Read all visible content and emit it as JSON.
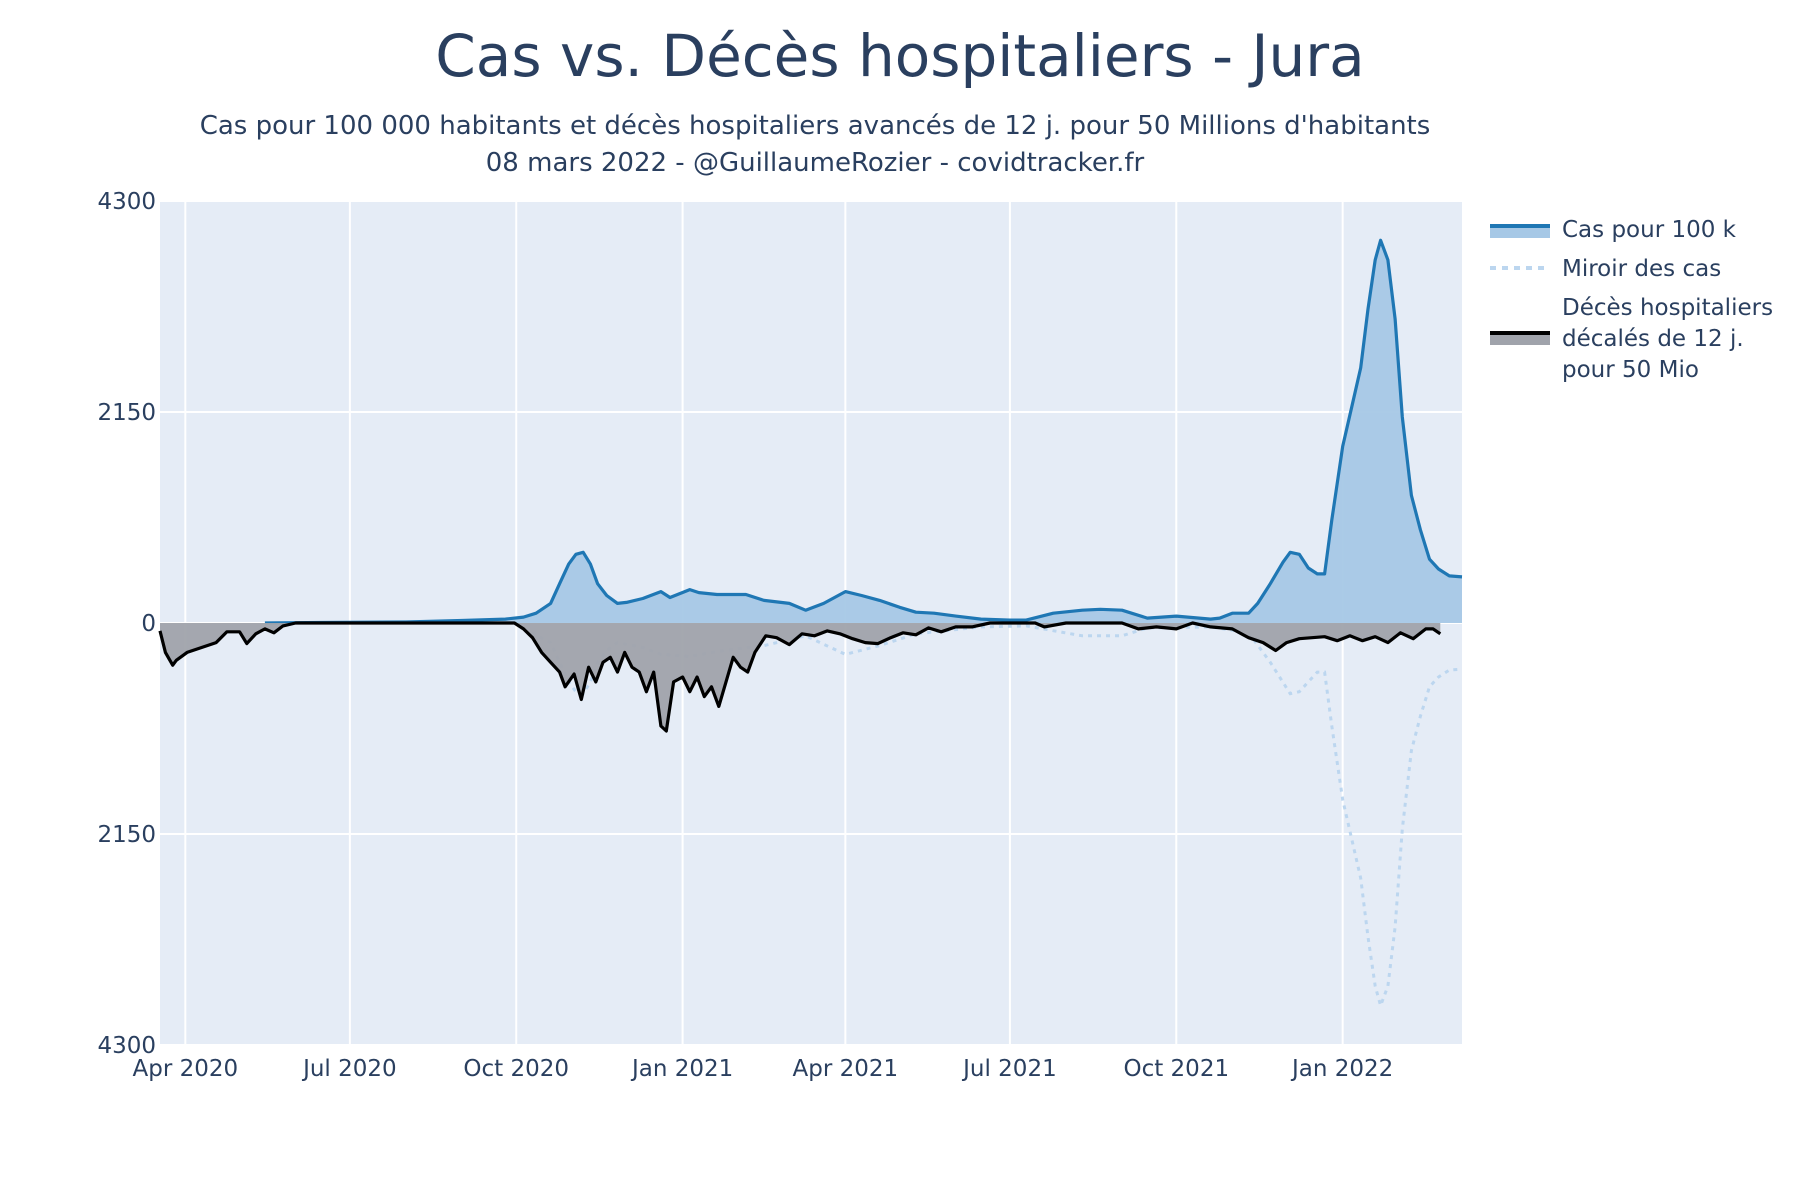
{
  "chart_data": {
    "type": "area",
    "title": "Cas vs. Décès hospitaliers - Jura",
    "subtitle_lines": [
      "Cas pour 100 000 habitants et décès hospitaliers avancés de 12 j. pour 50 Millions d'habitants",
      "08 mars 2022 - @GuillaumeRozier - covidtracker.fr"
    ],
    "x_range": [
      "2020-03-18",
      "2022-03-08"
    ],
    "y_range": [
      -4300,
      4300
    ],
    "y_ticks": [
      {
        "value": 4300,
        "label": "4300"
      },
      {
        "value": 2150,
        "label": "2150"
      },
      {
        "value": 0,
        "label": "0"
      },
      {
        "value": -2150,
        "label": "2150"
      },
      {
        "value": -4300,
        "label": "4300"
      }
    ],
    "x_ticks": [
      {
        "date": "2020-04-01",
        "label": "Apr 2020"
      },
      {
        "date": "2020-07-01",
        "label": "Jul 2020"
      },
      {
        "date": "2020-10-01",
        "label": "Oct 2020"
      },
      {
        "date": "2021-01-01",
        "label": "Jan 2021"
      },
      {
        "date": "2021-04-01",
        "label": "Apr 2021"
      },
      {
        "date": "2021-07-01",
        "label": "Jul 2021"
      },
      {
        "date": "2021-10-01",
        "label": "Oct 2021"
      },
      {
        "date": "2022-01-01",
        "label": "Jan 2022"
      }
    ],
    "grid": true,
    "legend_position": "right",
    "series": [
      {
        "name": "Cas pour 100 k",
        "style": "line-fill",
        "color": "#1f77b4",
        "fill_color": "#a6c8e6",
        "points": [
          [
            "2020-05-15",
            0
          ],
          [
            "2020-06-15",
            5
          ],
          [
            "2020-08-01",
            10
          ],
          [
            "2020-09-01",
            25
          ],
          [
            "2020-09-25",
            40
          ],
          [
            "2020-10-05",
            60
          ],
          [
            "2020-10-12",
            100
          ],
          [
            "2020-10-20",
            200
          ],
          [
            "2020-10-25",
            400
          ],
          [
            "2020-10-30",
            600
          ],
          [
            "2020-11-03",
            700
          ],
          [
            "2020-11-07",
            720
          ],
          [
            "2020-11-11",
            600
          ],
          [
            "2020-11-15",
            400
          ],
          [
            "2020-11-20",
            280
          ],
          [
            "2020-11-26",
            200
          ],
          [
            "2020-12-01",
            210
          ],
          [
            "2020-12-10",
            250
          ],
          [
            "2020-12-20",
            320
          ],
          [
            "2020-12-25",
            260
          ],
          [
            "2021-01-05",
            340
          ],
          [
            "2021-01-10",
            310
          ],
          [
            "2021-01-20",
            290
          ],
          [
            "2021-02-05",
            290
          ],
          [
            "2021-02-15",
            230
          ],
          [
            "2021-03-01",
            200
          ],
          [
            "2021-03-10",
            130
          ],
          [
            "2021-03-20",
            200
          ],
          [
            "2021-04-01",
            320
          ],
          [
            "2021-04-10",
            280
          ],
          [
            "2021-04-20",
            230
          ],
          [
            "2021-05-01",
            160
          ],
          [
            "2021-05-10",
            110
          ],
          [
            "2021-05-20",
            100
          ],
          [
            "2021-06-01",
            70
          ],
          [
            "2021-06-15",
            40
          ],
          [
            "2021-07-01",
            30
          ],
          [
            "2021-07-10",
            30
          ],
          [
            "2021-07-25",
            100
          ],
          [
            "2021-08-10",
            130
          ],
          [
            "2021-08-20",
            140
          ],
          [
            "2021-09-01",
            130
          ],
          [
            "2021-09-15",
            50
          ],
          [
            "2021-10-01",
            70
          ],
          [
            "2021-10-20",
            40
          ],
          [
            "2021-10-25",
            50
          ],
          [
            "2021-11-01",
            100
          ],
          [
            "2021-11-10",
            100
          ],
          [
            "2021-11-15",
            200
          ],
          [
            "2021-11-22",
            400
          ],
          [
            "2021-11-29",
            620
          ],
          [
            "2021-12-03",
            720
          ],
          [
            "2021-12-08",
            700
          ],
          [
            "2021-12-13",
            560
          ],
          [
            "2021-12-18",
            500
          ],
          [
            "2021-12-22",
            500
          ],
          [
            "2021-12-26",
            1050
          ],
          [
            "2022-01-01",
            1800
          ],
          [
            "2022-01-06",
            2200
          ],
          [
            "2022-01-11",
            2600
          ],
          [
            "2022-01-15",
            3200
          ],
          [
            "2022-01-19",
            3700
          ],
          [
            "2022-01-22",
            3900
          ],
          [
            "2022-01-26",
            3700
          ],
          [
            "2022-01-30",
            3100
          ],
          [
            "2022-02-03",
            2100
          ],
          [
            "2022-02-08",
            1300
          ],
          [
            "2022-02-13",
            950
          ],
          [
            "2022-02-18",
            650
          ],
          [
            "2022-02-23",
            550
          ],
          [
            "2022-03-01",
            480
          ],
          [
            "2022-03-08",
            470
          ]
        ]
      },
      {
        "name": "Miroir des cas",
        "style": "dotted-line",
        "color": "#bcd6ef",
        "points": [
          [
            "2020-10-05",
            -60
          ],
          [
            "2020-10-20",
            -200
          ],
          [
            "2020-10-25",
            -400
          ],
          [
            "2020-10-30",
            -600
          ],
          [
            "2020-11-03",
            -700
          ],
          [
            "2020-11-07",
            -720
          ],
          [
            "2020-11-11",
            -600
          ],
          [
            "2020-11-15",
            -400
          ],
          [
            "2020-11-20",
            -280
          ],
          [
            "2020-11-26",
            -200
          ],
          [
            "2020-12-10",
            -250
          ],
          [
            "2020-12-20",
            -320
          ],
          [
            "2021-01-05",
            -340
          ],
          [
            "2021-01-20",
            -290
          ],
          [
            "2021-02-15",
            -230
          ],
          [
            "2021-03-10",
            -130
          ],
          [
            "2021-04-01",
            -320
          ],
          [
            "2021-04-20",
            -230
          ],
          [
            "2021-05-10",
            -110
          ],
          [
            "2021-06-15",
            -40
          ],
          [
            "2021-07-10",
            -30
          ],
          [
            "2021-08-10",
            -130
          ],
          [
            "2021-09-01",
            -130
          ],
          [
            "2021-09-15",
            -50
          ],
          [
            "2021-10-20",
            -40
          ],
          [
            "2021-11-10",
            -100
          ],
          [
            "2021-11-22",
            -400
          ],
          [
            "2021-12-03",
            -720
          ],
          [
            "2021-12-08",
            -700
          ],
          [
            "2021-12-18",
            -500
          ],
          [
            "2021-12-22",
            -500
          ],
          [
            "2021-12-26",
            -1050
          ],
          [
            "2022-01-01",
            -1800
          ],
          [
            "2022-01-06",
            -2200
          ],
          [
            "2022-01-11",
            -2600
          ],
          [
            "2022-01-15",
            -3200
          ],
          [
            "2022-01-19",
            -3700
          ],
          [
            "2022-01-22",
            -3900
          ],
          [
            "2022-01-26",
            -3700
          ],
          [
            "2022-01-30",
            -3100
          ],
          [
            "2022-02-03",
            -2100
          ],
          [
            "2022-02-08",
            -1300
          ],
          [
            "2022-02-13",
            -950
          ],
          [
            "2022-02-18",
            -650
          ],
          [
            "2022-02-23",
            -550
          ],
          [
            "2022-03-01",
            -480
          ],
          [
            "2022-03-08",
            -470
          ]
        ]
      },
      {
        "name": "Décès hospitaliers décalés de 12 j. pour 50 Mio",
        "legend_lines": [
          "Décès hospitaliers",
          "décalés de 12 j.",
          "pour 50 Mio"
        ],
        "style": "line-fill",
        "color": "#000000",
        "fill_color": "#a0a3ab",
        "points": [
          [
            "2020-03-18",
            -80
          ],
          [
            "2020-03-21",
            -300
          ],
          [
            "2020-03-25",
            -430
          ],
          [
            "2020-03-27",
            -380
          ],
          [
            "2020-04-02",
            -300
          ],
          [
            "2020-04-10",
            -250
          ],
          [
            "2020-04-18",
            -200
          ],
          [
            "2020-04-24",
            -90
          ],
          [
            "2020-05-01",
            -90
          ],
          [
            "2020-05-05",
            -210
          ],
          [
            "2020-05-10",
            -110
          ],
          [
            "2020-05-15",
            -60
          ],
          [
            "2020-05-20",
            -100
          ],
          [
            "2020-05-25",
            -30
          ],
          [
            "2020-06-01",
            0
          ],
          [
            "2020-09-30",
            0
          ],
          [
            "2020-10-05",
            -60
          ],
          [
            "2020-10-10",
            -150
          ],
          [
            "2020-10-15",
            -300
          ],
          [
            "2020-10-20",
            -400
          ],
          [
            "2020-10-25",
            -500
          ],
          [
            "2020-10-28",
            -650
          ],
          [
            "2020-11-02",
            -520
          ],
          [
            "2020-11-06",
            -780
          ],
          [
            "2020-11-10",
            -450
          ],
          [
            "2020-11-14",
            -600
          ],
          [
            "2020-11-18",
            -400
          ],
          [
            "2020-11-22",
            -350
          ],
          [
            "2020-11-26",
            -500
          ],
          [
            "2020-11-30",
            -300
          ],
          [
            "2020-12-04",
            -450
          ],
          [
            "2020-12-08",
            -500
          ],
          [
            "2020-12-12",
            -700
          ],
          [
            "2020-12-16",
            -500
          ],
          [
            "2020-12-20",
            -1050
          ],
          [
            "2020-12-23",
            -1100
          ],
          [
            "2020-12-27",
            -600
          ],
          [
            "2021-01-01",
            -550
          ],
          [
            "2021-01-05",
            -700
          ],
          [
            "2021-01-09",
            -550
          ],
          [
            "2021-01-13",
            -750
          ],
          [
            "2021-01-17",
            -650
          ],
          [
            "2021-01-21",
            -850
          ],
          [
            "2021-01-25",
            -600
          ],
          [
            "2021-01-29",
            -350
          ],
          [
            "2021-02-02",
            -450
          ],
          [
            "2021-02-06",
            -500
          ],
          [
            "2021-02-10",
            -300
          ],
          [
            "2021-02-16",
            -130
          ],
          [
            "2021-02-22",
            -150
          ],
          [
            "2021-03-01",
            -220
          ],
          [
            "2021-03-08",
            -110
          ],
          [
            "2021-03-15",
            -130
          ],
          [
            "2021-03-22",
            -80
          ],
          [
            "2021-03-29",
            -110
          ],
          [
            "2021-04-05",
            -160
          ],
          [
            "2021-04-12",
            -200
          ],
          [
            "2021-04-19",
            -210
          ],
          [
            "2021-04-26",
            -150
          ],
          [
            "2021-05-03",
            -100
          ],
          [
            "2021-05-10",
            -120
          ],
          [
            "2021-05-17",
            -50
          ],
          [
            "2021-05-24",
            -90
          ],
          [
            "2021-06-01",
            -40
          ],
          [
            "2021-06-10",
            -40
          ],
          [
            "2021-06-20",
            0
          ],
          [
            "2021-07-15",
            0
          ],
          [
            "2021-07-20",
            -40
          ],
          [
            "2021-08-01",
            0
          ],
          [
            "2021-09-01",
            0
          ],
          [
            "2021-09-10",
            -60
          ],
          [
            "2021-09-20",
            -40
          ],
          [
            "2021-10-01",
            -60
          ],
          [
            "2021-10-10",
            0
          ],
          [
            "2021-10-20",
            -40
          ],
          [
            "2021-11-01",
            -60
          ],
          [
            "2021-11-10",
            -150
          ],
          [
            "2021-11-18",
            -200
          ],
          [
            "2021-11-25",
            -280
          ],
          [
            "2021-12-01",
            -200
          ],
          [
            "2021-12-08",
            -160
          ],
          [
            "2021-12-15",
            -150
          ],
          [
            "2021-12-22",
            -140
          ],
          [
            "2021-12-29",
            -180
          ],
          [
            "2022-01-05",
            -130
          ],
          [
            "2022-01-12",
            -180
          ],
          [
            "2022-01-19",
            -140
          ],
          [
            "2022-01-26",
            -200
          ],
          [
            "2022-02-02",
            -100
          ],
          [
            "2022-02-09",
            -160
          ],
          [
            "2022-02-16",
            -60
          ],
          [
            "2022-02-20",
            -60
          ],
          [
            "2022-02-24",
            -110
          ]
        ]
      }
    ]
  }
}
